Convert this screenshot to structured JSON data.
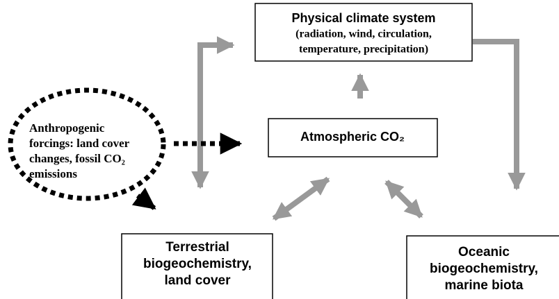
{
  "nodes": [
    {
      "title": "Physical climate system",
      "lines": [
        "(radiation, wind, circulation,",
        "temperature, precipitation)"
      ]
    },
    {
      "lines": [
        "Atmospheric CO₂"
      ]
    },
    {
      "lines": [
        "Anthropogenic",
        "forcings: land cover",
        "changes, fossil CO₂",
        "emissions"
      ]
    },
    {
      "lines": [
        "Terrestrial",
        "biogeochemistry,",
        "land cover"
      ]
    },
    {
      "lines": [
        "Oceanic",
        "biogeochemistry,",
        "marine biota"
      ]
    }
  ]
}
